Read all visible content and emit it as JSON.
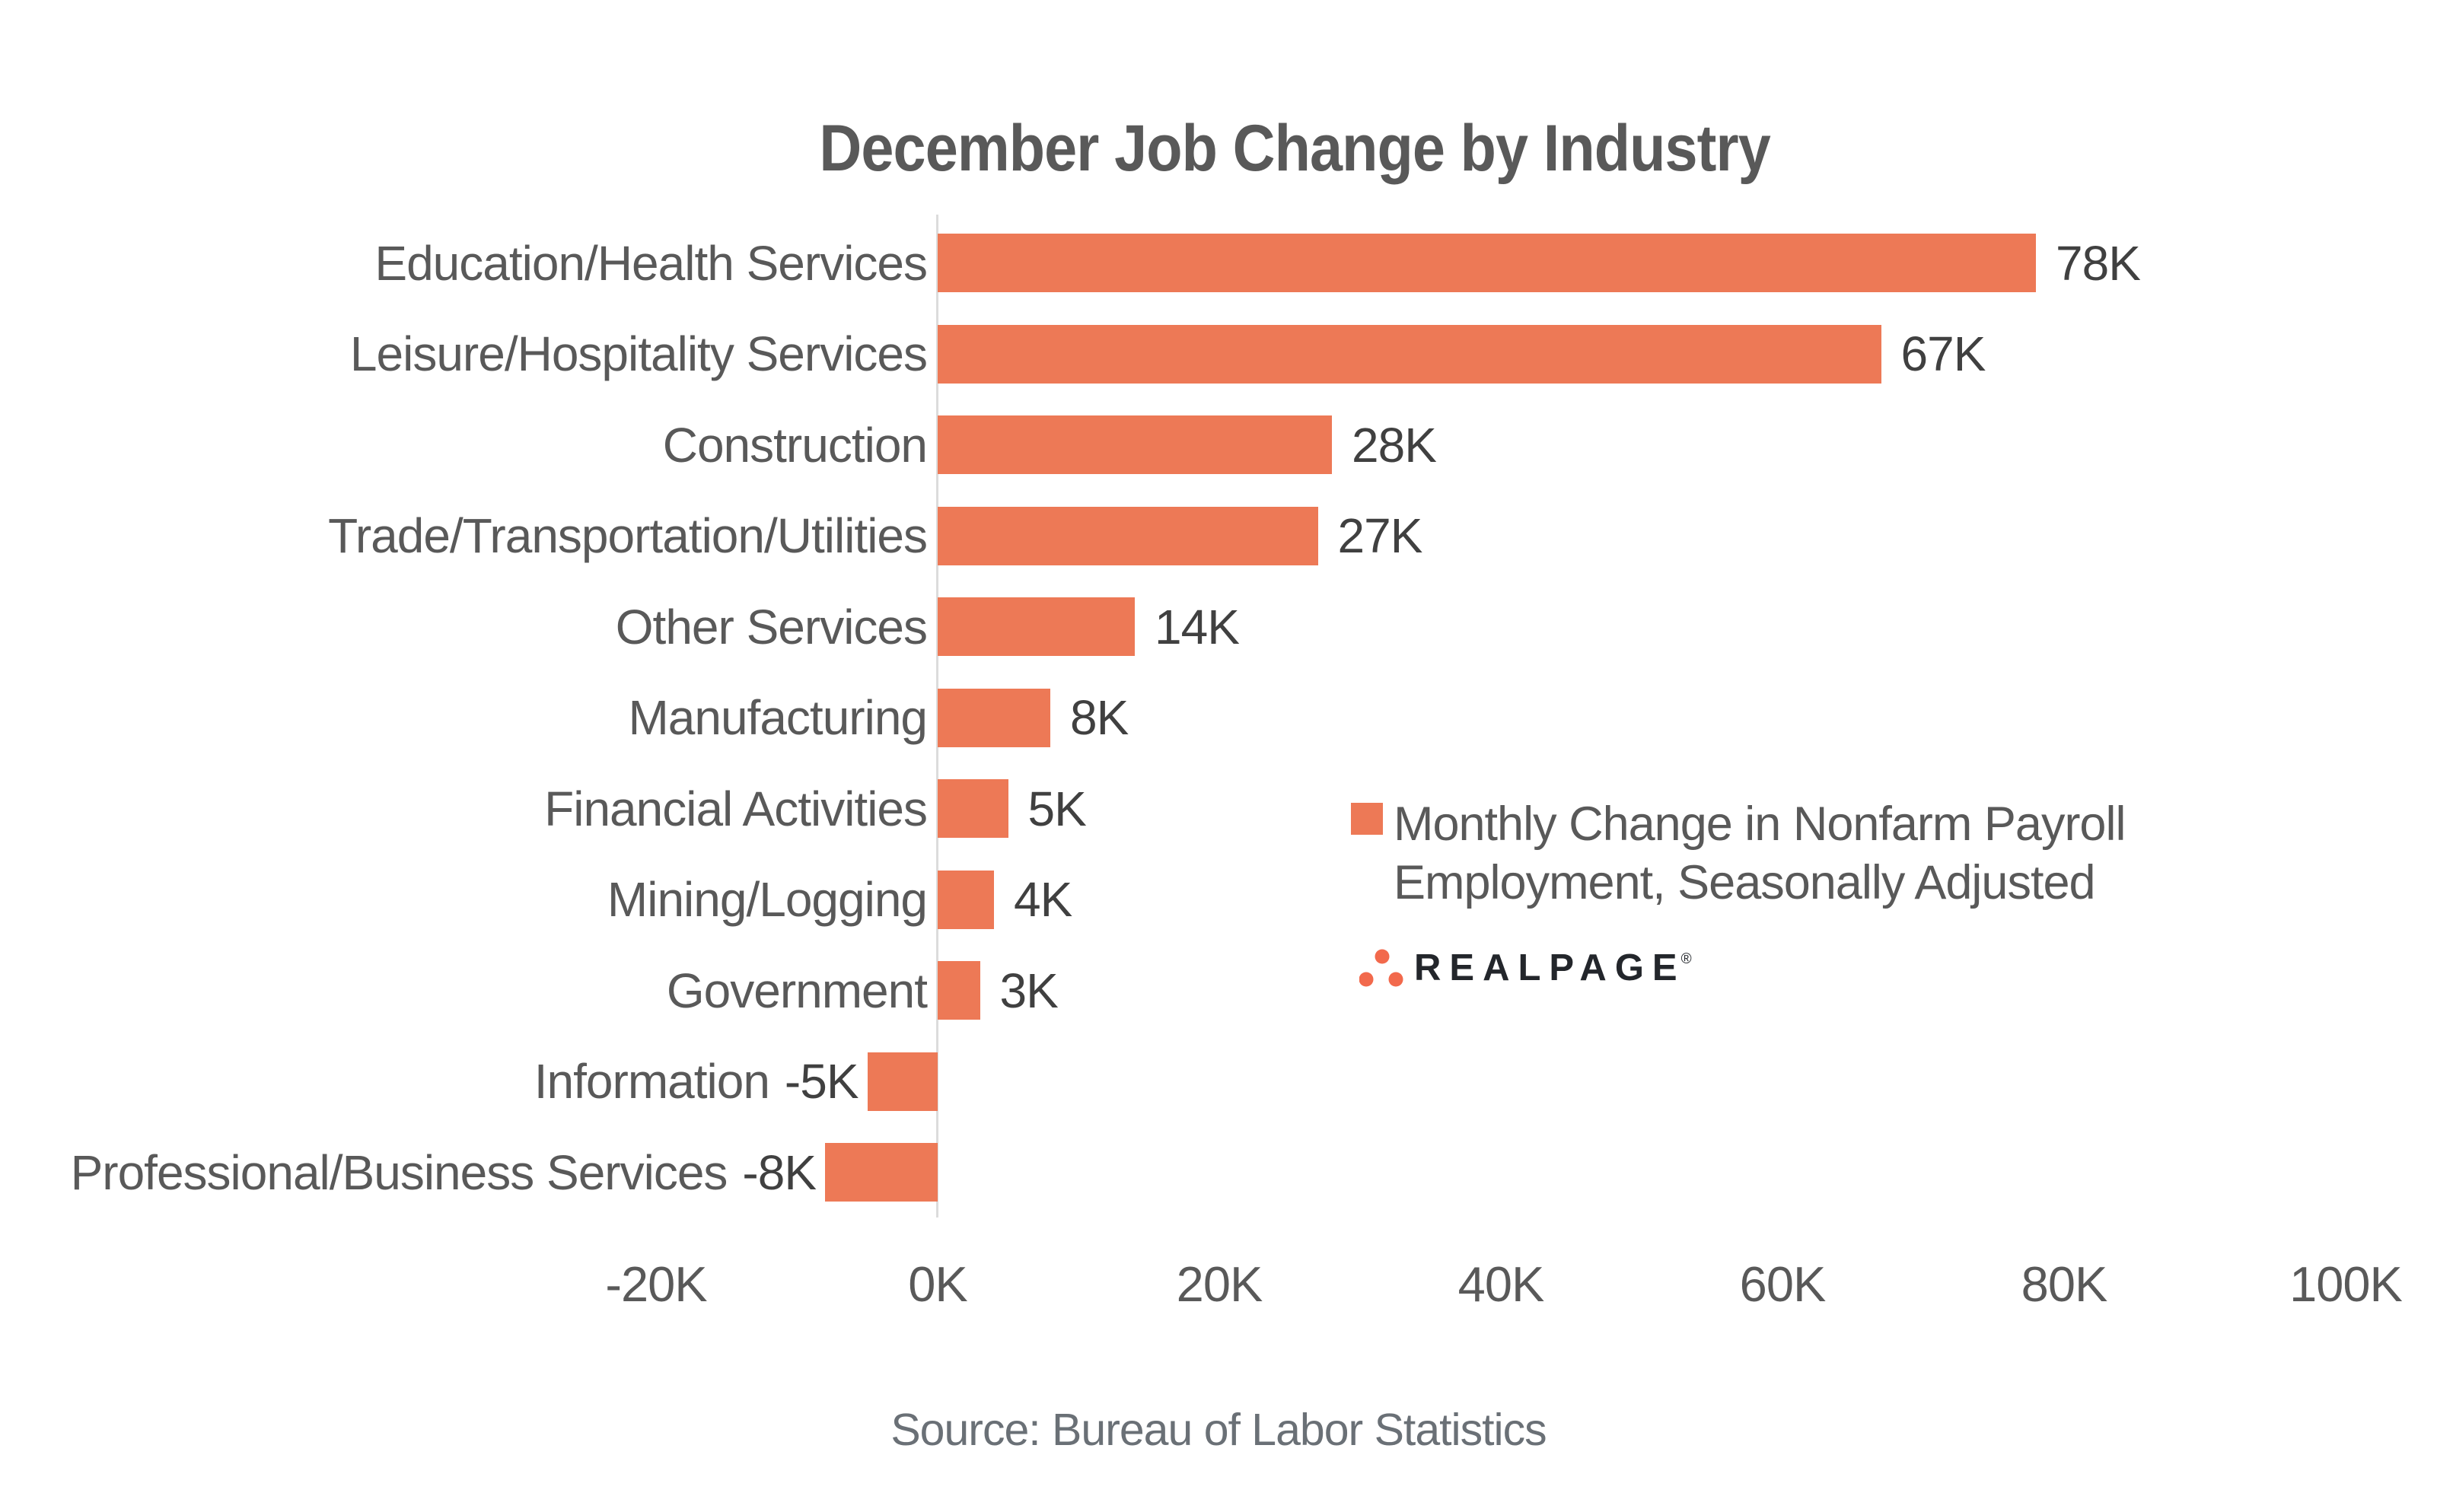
{
  "chart_data": {
    "type": "bar",
    "orientation": "horizontal",
    "title": "December Job Change by Industry",
    "categories": [
      "Education/Health Services",
      "Leisure/Hospitality Services",
      "Construction",
      "Trade/Transportation/Utilities",
      "Other Services",
      "Manufacturing",
      "Financial Activities",
      "Mining/Logging",
      "Government",
      "Information",
      "Professional/Business Services"
    ],
    "values": [
      78,
      67,
      28,
      27,
      14,
      8,
      5,
      4,
      3,
      -5,
      -8
    ],
    "value_labels": [
      "78K",
      "67K",
      "28K",
      "27K",
      "14K",
      "8K",
      "5K",
      "4K",
      "3K",
      "-5K",
      "-8K"
    ],
    "value_unit": "K",
    "xlim": [
      -20,
      100
    ],
    "x_tick_values": [
      -20,
      0,
      20,
      40,
      60,
      80,
      100
    ],
    "x_tick_labels": [
      "-20K",
      "0K",
      "20K",
      "40K",
      "60K",
      "80K",
      "100K"
    ],
    "grid": false,
    "legend_position": "middle-right",
    "legend_label": "Monthly Change in Nonfarm Payroll Employment, Seasonally Adjusted",
    "legend_lines": [
      "Monthly Change in Nonfarm Payroll",
      "Employment, Seasonally Adjusted"
    ],
    "bar_color": "#ED7956"
  },
  "branding": {
    "text": "REALPAGE",
    "trademark": "®"
  },
  "footer": {
    "source": "Source: Bureau of Labor Statistics"
  },
  "colors": {
    "bar": "#ED7956",
    "title": "#595959",
    "label": "#595959",
    "value": "#404040",
    "tick": "#595959",
    "axis": "#DCDCDC",
    "source": "#6A7076",
    "logo": "#23262B",
    "dots": "#F2694C"
  }
}
